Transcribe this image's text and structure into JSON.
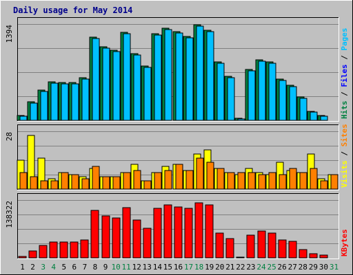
{
  "chart_data": {
    "type": "bar",
    "title": "Daily usage for May 2014",
    "categories": [
      "1",
      "2",
      "3",
      "4",
      "5",
      "6",
      "7",
      "8",
      "9",
      "10",
      "11",
      "12",
      "13",
      "14",
      "15",
      "16",
      "17",
      "18",
      "19",
      "20",
      "21",
      "22",
      "23",
      "24",
      "25",
      "26",
      "27",
      "28",
      "29",
      "30",
      "31"
    ],
    "weekend_days": [
      3,
      4,
      10,
      11,
      17,
      18,
      24,
      25,
      31
    ],
    "grid": true,
    "panels": [
      {
        "name": "pages-files-hits",
        "max_label": "1394",
        "ylim": [
          0,
          1394
        ],
        "right_labels": [
          {
            "text": "Hits",
            "color": "#008040"
          },
          {
            "text": " / ",
            "color": "#000000"
          },
          {
            "text": "Files",
            "color": "#0000ff"
          },
          {
            "text": " / ",
            "color": "#000000"
          },
          {
            "text": "Pages",
            "color": "#00c0ff"
          }
        ],
        "series": [
          {
            "name": "Hits",
            "color": "#008040",
            "values": [
              70,
              270,
              440,
              560,
              550,
              550,
              620,
              1200,
              1070,
              1020,
              1270,
              970,
              790,
              1250,
              1330,
              1280,
              1210,
              1380,
              1300,
              850,
              640,
              25,
              740,
              880,
              850,
              600,
              510,
              340,
              130,
              70,
              0
            ]
          },
          {
            "name": "Files",
            "color": "#00c0ff",
            "values": [
              60,
              250,
              420,
              540,
              530,
              530,
              600,
              1180,
              1050,
              1000,
              1250,
              950,
              770,
              1230,
              1310,
              1260,
              1190,
              1360,
              1280,
              830,
              620,
              20,
              720,
              860,
              830,
              580,
              490,
              320,
              120,
              60,
              0
            ]
          }
        ]
      },
      {
        "name": "visits-sites",
        "max_label": "28",
        "ylim": [
          0,
          28
        ],
        "right_labels": [
          {
            "text": "Visits",
            "color": "#ffff00"
          },
          {
            "text": " / ",
            "color": "#000000"
          },
          {
            "text": "Sites",
            "color": "#ff8000"
          }
        ],
        "series": [
          {
            "name": "Visits",
            "color": "#ffff00",
            "values": [
              14,
              26,
              15,
              5,
              8,
              7,
              6,
              10,
              6,
              6,
              8,
              12,
              4,
              8,
              11,
              12,
              9,
              17,
              19,
              10,
              8,
              7,
              10,
              8,
              7,
              13,
              9,
              8,
              17,
              5,
              7
            ]
          },
          {
            "name": "Sites",
            "color": "#ff8000",
            "values": [
              8,
              6,
              4,
              4,
              8,
              7,
              5,
              11,
              6,
              6,
              8,
              9,
              4,
              8,
              9,
              12,
              9,
              15,
              13,
              10,
              8,
              8,
              8,
              7,
              8,
              7,
              10,
              8,
              10,
              4,
              7
            ]
          }
        ]
      },
      {
        "name": "kbytes",
        "max_label": "138322",
        "ylim": [
          0,
          138322
        ],
        "right_labels": [
          {
            "text": "KBytes",
            "color": "#ff0000"
          }
        ],
        "series": [
          {
            "name": "KBytes",
            "color": "#ff0000",
            "values": [
              4000,
              17000,
              30000,
              38000,
              38000,
              38000,
              42000,
              113000,
              100000,
              95000,
              120000,
              90000,
              71000,
              118000,
              127000,
              122000,
              118000,
              132000,
              126000,
              60000,
              46000,
              2000,
              54000,
              65000,
              60000,
              43000,
              40000,
              20000,
              10000,
              7000,
              0
            ]
          }
        ]
      }
    ]
  }
}
